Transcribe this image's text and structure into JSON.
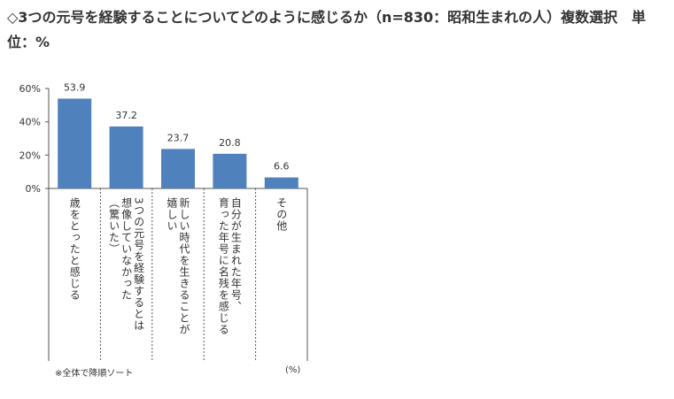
{
  "title": "◇3つの元号を経験することについてどのように感じるか（n=830：昭和生まれの人）複数選択　単位：%",
  "chart_data": {
    "type": "bar",
    "categories": [
      "歳をとったと感じる",
      "3つの元号を経験するとは想像していなかった（驚いた）",
      "新しい時代を生きることが嬉しい",
      "自分が生まれた年号、育った年号に名残を感じる",
      "その他"
    ],
    "category_columns": [
      [
        "歳をとったと感じる"
      ],
      [
        "3つの元号を経験するとは",
        "想像していなかった",
        "（驚いた）"
      ],
      [
        "新しい時代を生きることが",
        "嬉しい"
      ],
      [
        "自分が生まれた年号、",
        "育った年号に名残を感じる"
      ],
      [
        "その他"
      ]
    ],
    "values": [
      53.9,
      37.2,
      23.7,
      20.8,
      6.6
    ],
    "value_labels": [
      "53.9",
      "37.2",
      "23.7",
      "20.8",
      "6.6"
    ],
    "ylim": [
      0,
      60
    ],
    "yticks": [
      "0%",
      "20%",
      "40%",
      "60%"
    ],
    "grid": false,
    "bar_color": "#4f81bd"
  },
  "footnote": "※全体で降順ソート",
  "unit_note": "(%)"
}
